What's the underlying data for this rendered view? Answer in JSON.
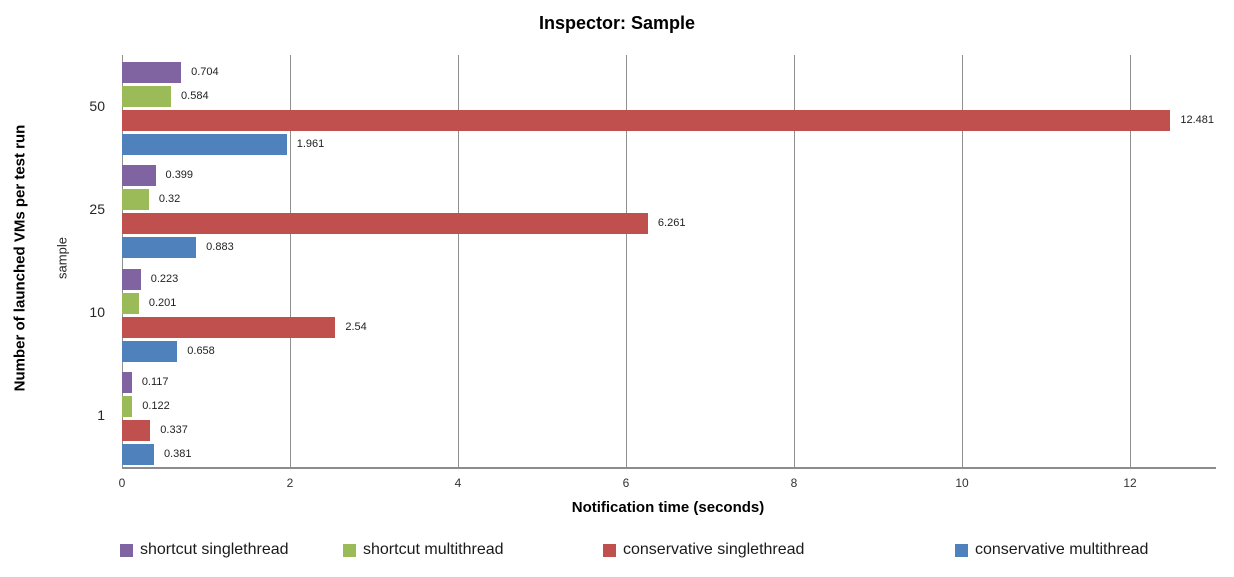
{
  "chart_data": {
    "type": "bar",
    "orientation": "horizontal",
    "title": "Inspector: Sample",
    "xlabel": "Notification time (seconds)",
    "ylabel": "Number of launched VMs per test run",
    "ylabel_secondary": "sample",
    "categories": [
      "50",
      "25",
      "10",
      "1"
    ],
    "series": [
      {
        "name": "shortcut singlethread",
        "color": "#8064A2",
        "values": [
          0.704,
          0.399,
          0.223,
          0.117
        ],
        "labels": [
          "0.704",
          "0.399",
          "0.223",
          "0.117"
        ]
      },
      {
        "name": "shortcut multithread",
        "color": "#9BBB59",
        "values": [
          0.584,
          0.32,
          0.201,
          0.122
        ],
        "labels": [
          "0.584",
          "0.32",
          "0.201",
          "0.122"
        ]
      },
      {
        "name": "conservative singlethread",
        "color": "#C0504D",
        "values": [
          12.481,
          6.261,
          2.54,
          0.337
        ],
        "labels": [
          "12.481",
          "6.261",
          "2.54",
          "0.337"
        ]
      },
      {
        "name": "conservative multithread",
        "color": "#4F81BD",
        "values": [
          1.961,
          0.883,
          0.658,
          0.381
        ],
        "labels": [
          "1.961",
          "0.883",
          "0.658",
          "0.381"
        ]
      }
    ],
    "x_ticks": [
      0,
      2,
      4,
      6,
      8,
      10,
      12
    ],
    "xlim": [
      0,
      13
    ],
    "grid": true,
    "legend_position": "bottom",
    "value_labels": true
  }
}
